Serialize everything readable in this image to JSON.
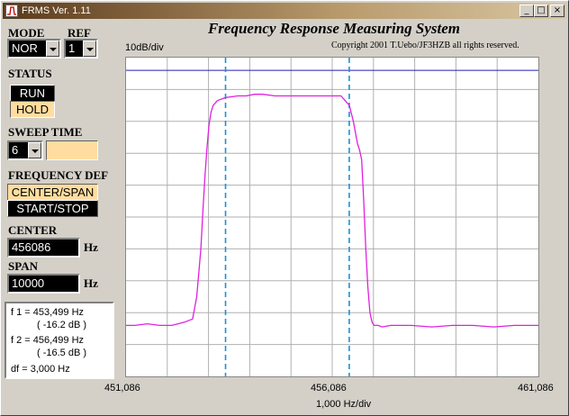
{
  "window": {
    "title": "FRMS  Ver. 1.11",
    "controls": [
      "_",
      "□",
      "×"
    ]
  },
  "mode": {
    "label": "MODE",
    "value": "NOR"
  },
  "ref": {
    "label": "REF",
    "value": "1"
  },
  "status": {
    "label": "STATUS",
    "run": "RUN",
    "hold": "HOLD",
    "active": "HOLD"
  },
  "sweep": {
    "label": "SWEEP TIME",
    "value": "6",
    "extra": ""
  },
  "freqdef": {
    "label": "FREQUENCY DEF",
    "center_span": "CENTER/SPAN",
    "start_stop": "START/STOP",
    "active": "CENTER/SPAN"
  },
  "center": {
    "label": "CENTER",
    "value": "456086",
    "unit": "Hz"
  },
  "span": {
    "label": "SPAN",
    "value": "10000",
    "unit": "Hz"
  },
  "markers": {
    "f1": "f 1 = 453,499 Hz",
    "f1db": "( -16.2 dB )",
    "f2": "f 2 = 456,499 Hz",
    "f2db": "( -16.5 dB )",
    "df": "df = 3,000 Hz"
  },
  "plot": {
    "title": "Frequency Response Measuring System",
    "ydiv": "10dB/div",
    "copyright": "Copyright 2001 T.Uebo/JF3HZB all rights reserved.",
    "xdiv": "1,000 Hz/div"
  },
  "chart_data": {
    "type": "line",
    "x_ticks": [
      "451,086",
      "456,086",
      "461,086"
    ],
    "xlim": [
      451086,
      461086
    ],
    "ylim": [
      0,
      10
    ],
    "grid": true,
    "reference_level_div": 9.6,
    "markers_x": [
      453499,
      456499
    ],
    "series": [
      {
        "color": "#e020e0",
        "x": [
          451086,
          451300,
          451600,
          451900,
          452200,
          452500,
          452700,
          452800,
          452900,
          452950,
          453000,
          453050,
          453100,
          453150,
          453200,
          453300,
          453500,
          453800,
          454000,
          454200,
          454400,
          454700,
          455000,
          455500,
          456000,
          456300,
          456500,
          456600,
          456700,
          456750,
          456800,
          456850,
          456900,
          456950,
          457000,
          457050,
          457100,
          457200,
          457300,
          457500,
          458000,
          458500,
          459000,
          459500,
          460000,
          460500,
          461086
        ],
        "y": [
          1.6,
          1.6,
          1.65,
          1.6,
          1.6,
          1.7,
          1.8,
          2.5,
          4.0,
          5.2,
          6.3,
          7.2,
          7.9,
          8.3,
          8.5,
          8.65,
          8.75,
          8.8,
          8.8,
          8.85,
          8.85,
          8.8,
          8.8,
          8.8,
          8.8,
          8.8,
          8.5,
          8.0,
          7.3,
          7.1,
          6.8,
          5.5,
          4.0,
          2.8,
          2.0,
          1.7,
          1.6,
          1.6,
          1.55,
          1.6,
          1.6,
          1.55,
          1.6,
          1.6,
          1.55,
          1.6,
          1.6
        ]
      }
    ]
  }
}
